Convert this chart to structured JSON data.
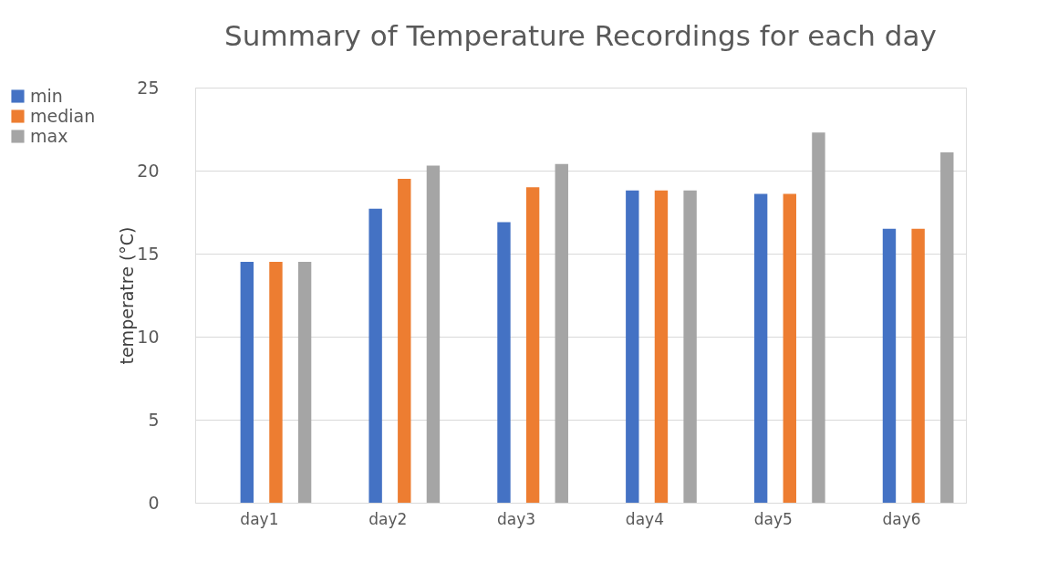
{
  "chart_data": {
    "type": "bar",
    "title": "Summary of Temperature Recordings for each day",
    "ylabel": "temperatre (°C)",
    "categories": [
      "day1",
      "day2",
      "day3",
      "day4",
      "day5",
      "day6"
    ],
    "series": [
      {
        "name": "min",
        "color": "#4472c4",
        "values": [
          14.5,
          17.7,
          16.9,
          18.8,
          18.6,
          16.5
        ]
      },
      {
        "name": "median",
        "color": "#ed7d31",
        "values": [
          14.5,
          19.5,
          19.0,
          18.8,
          18.6,
          16.5
        ]
      },
      {
        "name": "max",
        "color": "#a5a5a5",
        "values": [
          14.5,
          20.3,
          20.4,
          18.8,
          22.3,
          21.1
        ]
      }
    ],
    "ylim": [
      0,
      25
    ],
    "yticks": [
      0,
      5,
      10,
      15,
      20,
      25
    ],
    "grid": "y",
    "legend": "left"
  }
}
